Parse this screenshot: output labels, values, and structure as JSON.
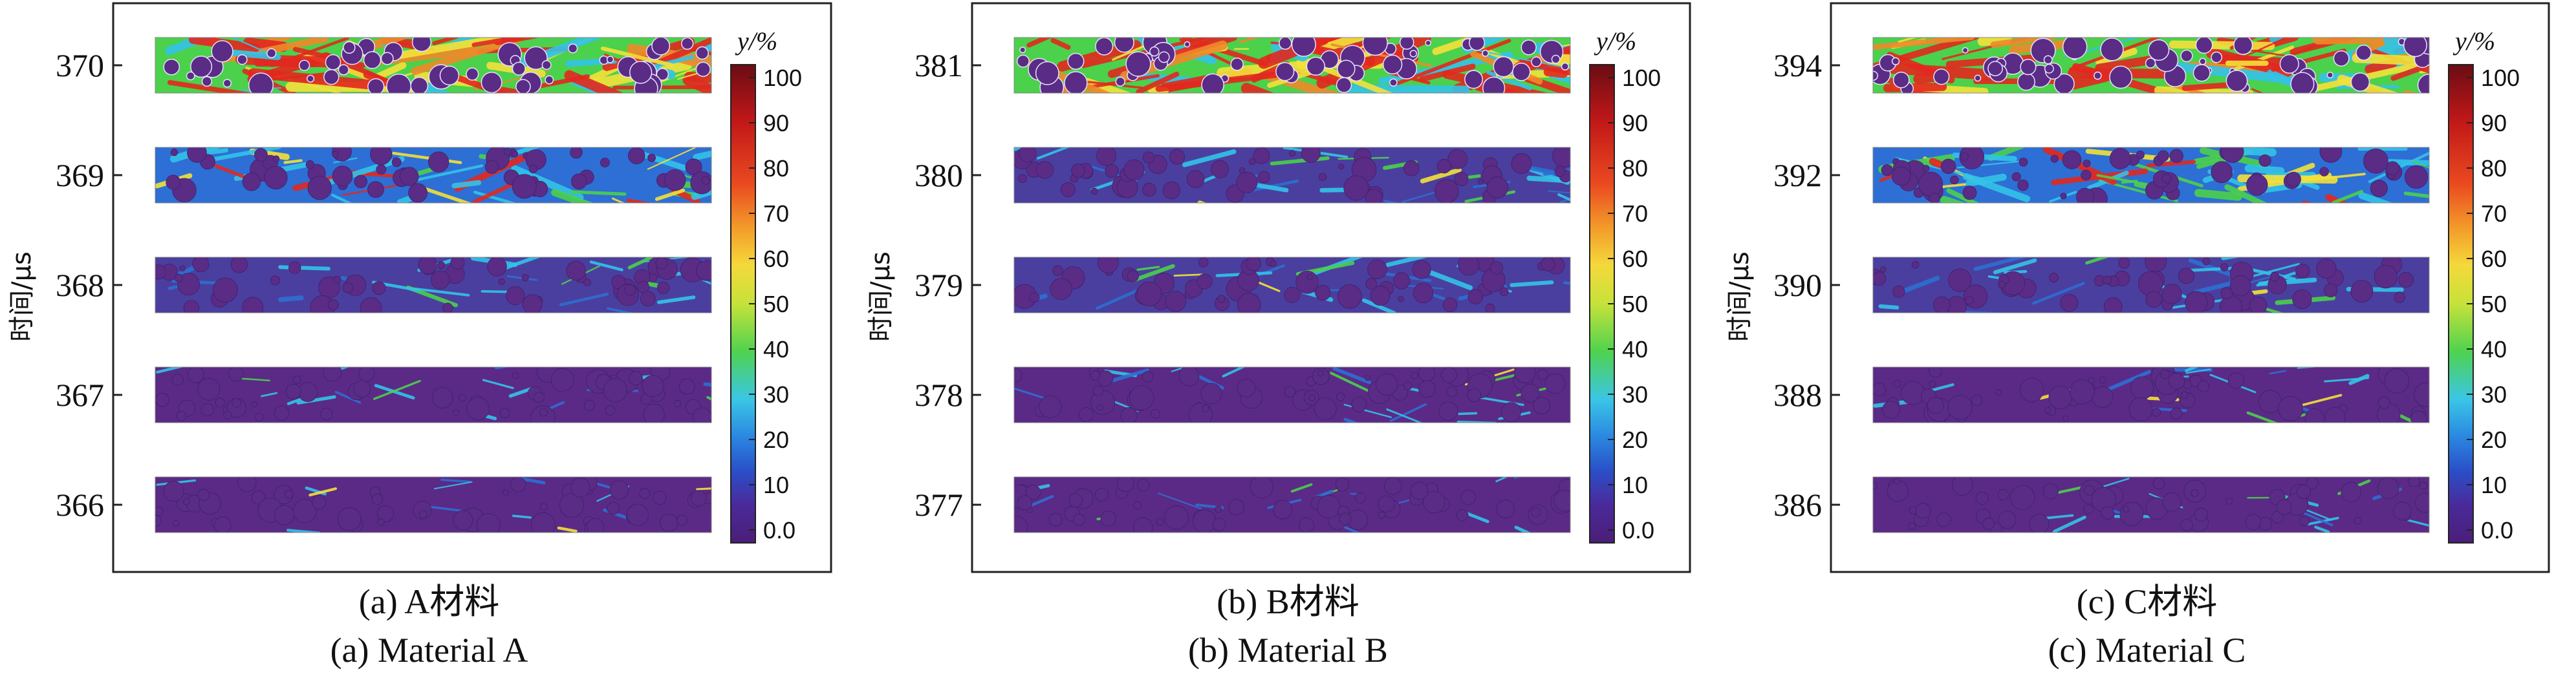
{
  "colors": {
    "low": "#5b2a86",
    "mid": "#2d6fd4",
    "cyan": "#33c3e8",
    "green": "#4bd14b",
    "yellow": "#f4e13b",
    "red": "#e3281f",
    "aggregate": "#5a2c86"
  },
  "colorbar": {
    "title": "y/%",
    "ticks": [
      "100",
      "90",
      "80",
      "70",
      "60",
      "50",
      "40",
      "30",
      "20",
      "10",
      "0.0"
    ]
  },
  "panels": [
    {
      "id": "a",
      "caption_cn": "(a) A材料",
      "caption_en": "(a) Material A",
      "y_axis_label": "时间/μs",
      "time_ticks": [
        "370",
        "369",
        "368",
        "367",
        "366"
      ],
      "strips": [
        {
          "time": "370",
          "damage": 0.9
        },
        {
          "time": "369",
          "damage": 0.45
        },
        {
          "time": "368",
          "damage": 0.22
        },
        {
          "time": "367",
          "damage": 0.12
        },
        {
          "time": "366",
          "damage": 0.06
        }
      ]
    },
    {
      "id": "b",
      "caption_cn": "(b) B材料",
      "caption_en": "(b) Material B",
      "y_axis_label": "时间/μs",
      "time_ticks": [
        "381",
        "380",
        "379",
        "378",
        "377"
      ],
      "strips": [
        {
          "time": "381",
          "damage": 0.95
        },
        {
          "time": "380",
          "damage": 0.3
        },
        {
          "time": "379",
          "damage": 0.22
        },
        {
          "time": "378",
          "damage": 0.15
        },
        {
          "time": "377",
          "damage": 0.08
        }
      ]
    },
    {
      "id": "c",
      "caption_cn": "(c) C材料",
      "caption_en": "(c) Material C",
      "y_axis_label": "时间/μs",
      "time_ticks": [
        "394",
        "392",
        "390",
        "388",
        "386"
      ],
      "strips": [
        {
          "time": "394",
          "damage": 0.85
        },
        {
          "time": "392",
          "damage": 0.55
        },
        {
          "time": "390",
          "damage": 0.2
        },
        {
          "time": "388",
          "damage": 0.14
        },
        {
          "time": "386",
          "damage": 0.08
        }
      ]
    }
  ]
}
